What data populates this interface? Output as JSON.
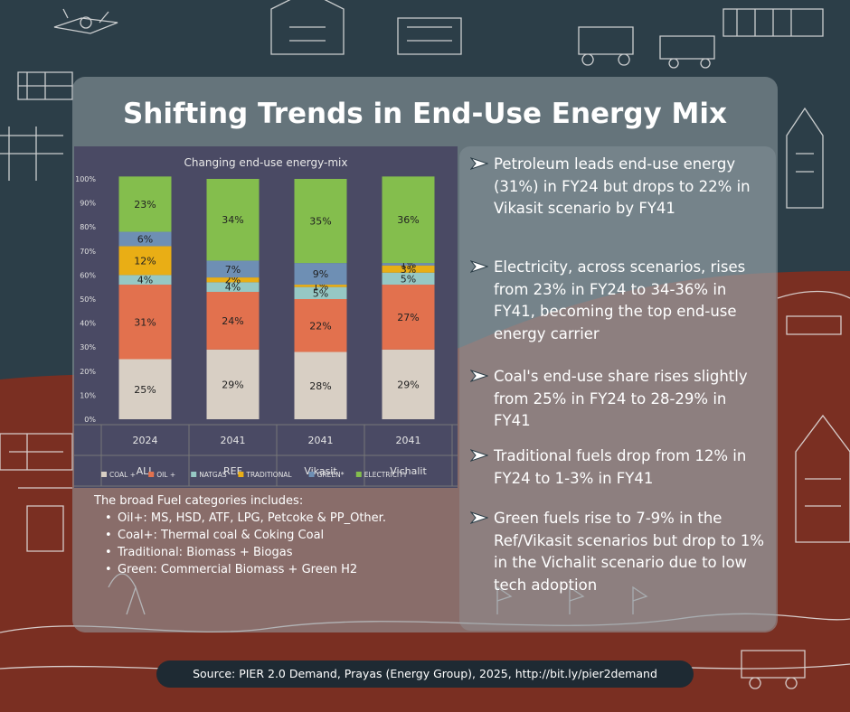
{
  "title": "Shifting Trends in End-Use Energy Mix",
  "colors": {
    "coal": "#d8cfc4",
    "oil": "#e2714e",
    "natgas": "#96c8c4",
    "traditional": "#e9ae15",
    "green": "#6e8fb4",
    "electricity": "#84be4d",
    "chart_bg": "#4a4a64"
  },
  "chart_data": {
    "type": "bar",
    "stacked": true,
    "title": "Changing end-use energy-mix",
    "categories": [
      "2024",
      "2041",
      "2041",
      "2041"
    ],
    "scenarios": [
      "ALL",
      "REF",
      "Vikasit",
      "Vichalit"
    ],
    "ylim": [
      0,
      100
    ],
    "yticks": [
      "0%",
      "10%",
      "20%",
      "30%",
      "40%",
      "50%",
      "60%",
      "70%",
      "80%",
      "90%",
      "100%"
    ],
    "series": [
      {
        "name": "COAL +",
        "values": [
          25,
          29,
          28,
          29
        ],
        "labels": [
          "25%",
          "29%",
          "28%",
          "29%"
        ]
      },
      {
        "name": "OIL +",
        "values": [
          31,
          24,
          22,
          27
        ],
        "labels": [
          "31%",
          "24%",
          "22%",
          "27%"
        ]
      },
      {
        "name": "NATGAS",
        "values": [
          4,
          4,
          5,
          5
        ],
        "labels": [
          "4%",
          "4%",
          "5%",
          "5%"
        ]
      },
      {
        "name": "TRADITIONAL",
        "values": [
          12,
          2,
          1,
          3
        ],
        "labels": [
          "12%",
          "2%",
          "1%",
          "3%"
        ]
      },
      {
        "name": "GREEN*",
        "values": [
          6,
          7,
          9,
          1
        ],
        "labels": [
          "6%",
          "7%",
          "9%",
          "1%"
        ]
      },
      {
        "name": "ELECTRICITY",
        "values": [
          23,
          34,
          35,
          36
        ],
        "labels": [
          "23%",
          "34%",
          "35%",
          "36%"
        ]
      }
    ]
  },
  "notes": {
    "heading": "The broad Fuel categories includes:",
    "items": [
      "Oil+: MS, HSD, ATF, LPG, Petcoke & PP_Other.",
      "Coal+: Thermal coal & Coking Coal",
      "Traditional: Biomass + Biogas",
      "Green: Commercial Biomass + Green H2"
    ]
  },
  "bullets": [
    "Petroleum leads end-use energy (31%) in FY24 but drops to 22% in Vikasit scenario by FY41",
    "Electricity, across scenarios, rises from 23% in FY24 to 34-36% in FY41, becoming the top end-use energy carrier",
    "Coal's end-use share rises slightly from 25% in FY24 to 28-29% in FY41",
    "Traditional fuels drop from 12% in FY24 to 1-3% in FY41",
    "Green fuels rise to 7-9% in the Ref/Vikasit scenarios but drop to 1% in the Vichalit scenario due to low tech adoption"
  ],
  "source": "Source: PIER 2.0 Demand, Prayas (Energy Group), 2025, http://bit.ly/pier2demand"
}
